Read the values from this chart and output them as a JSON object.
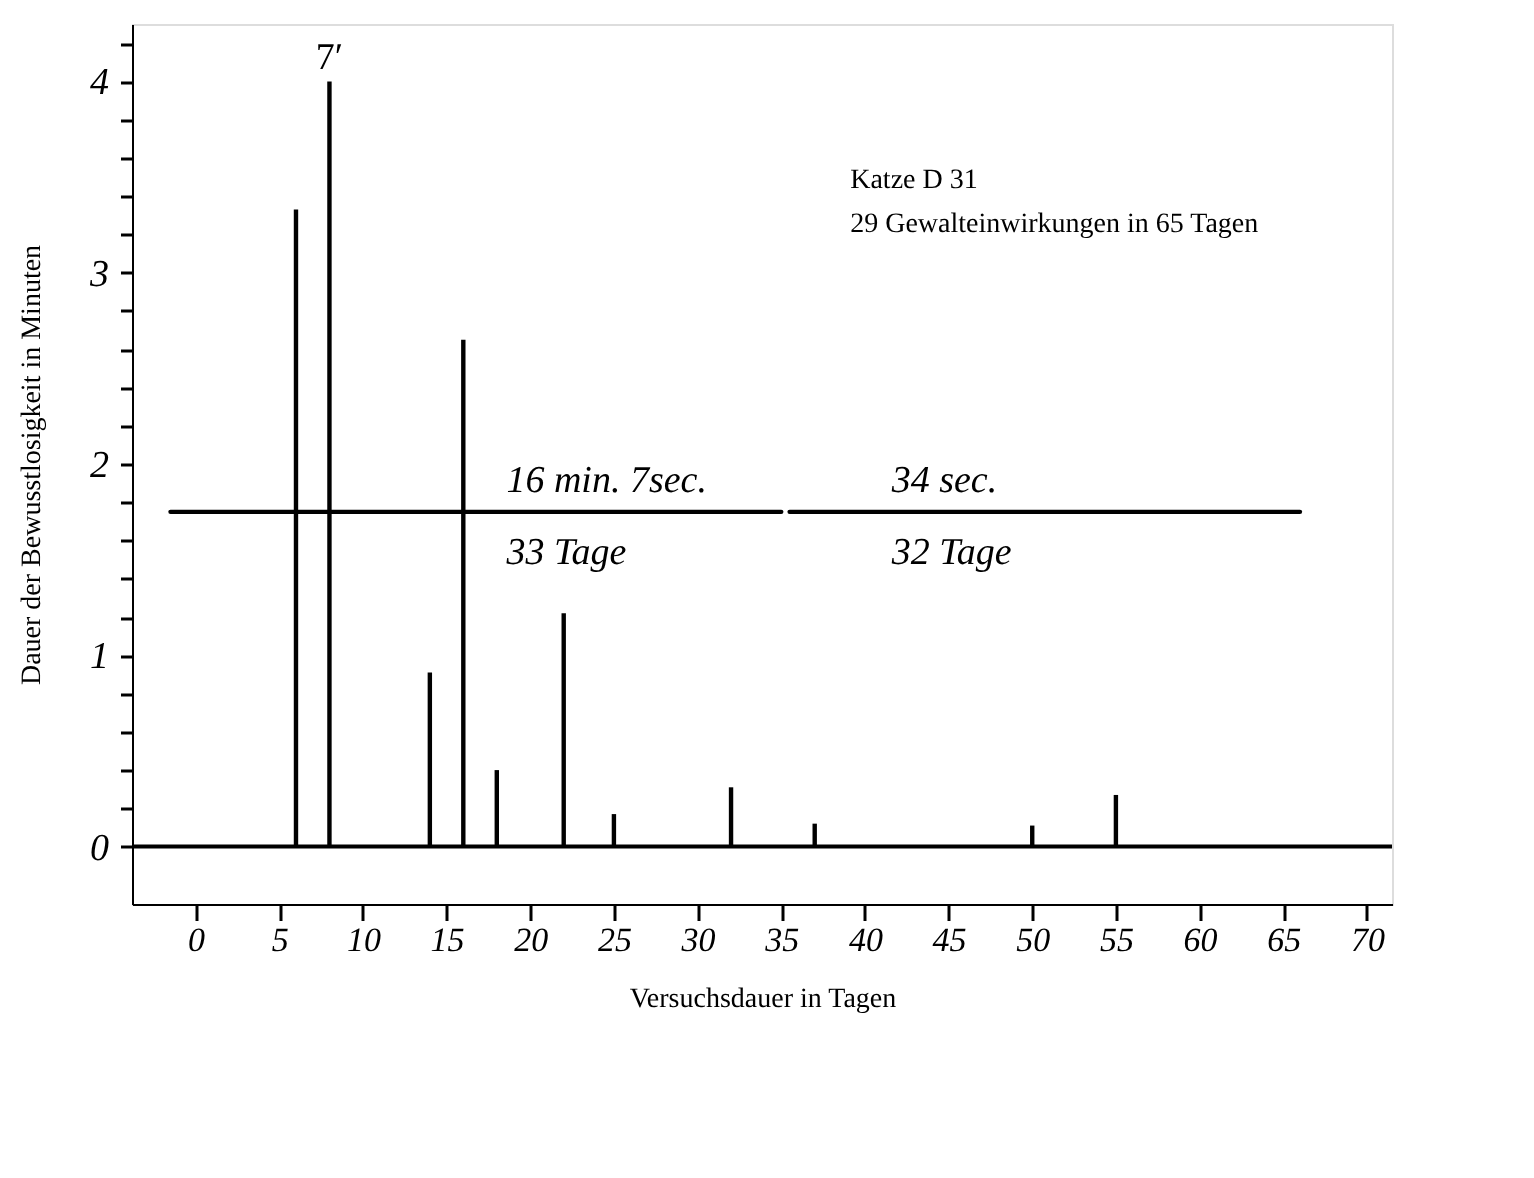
{
  "chart_data": {
    "type": "bar",
    "xlabel": "Versuchsdauer in Tagen",
    "ylabel": "Dauer der Bewusstlosigkeit in Minuten",
    "series": [
      {
        "color": "#000000",
        "x": [
          6,
          8,
          14,
          16,
          18,
          22,
          25,
          32,
          37,
          50,
          55
        ],
        "values": [
          3.33,
          4.0,
          0.91,
          2.65,
          0.4,
          1.22,
          0.17,
          0.31,
          0.12,
          0.11,
          0.27
        ]
      },
      {
        "type": "line",
        "color": "#000000",
        "x": [
          -1.5,
          35
        ],
        "values": [
          1.75,
          1.75
        ]
      },
      {
        "type": "line",
        "color": "#000000",
        "x": [
          35.5,
          66
        ],
        "values": [
          1.75,
          1.75
        ]
      }
    ],
    "xlim": [
      -3.8,
      71.5
    ],
    "ylim": [
      -0.3,
      4.3
    ],
    "xticks": [
      0,
      5,
      10,
      15,
      20,
      25,
      30,
      35,
      40,
      45,
      50,
      55,
      60,
      65,
      70
    ],
    "yticks": [
      0,
      {
        "value": 0.2,
        "label": null
      },
      {
        "value": 0.4,
        "label": null
      },
      {
        "value": 0.6,
        "label": null
      },
      {
        "value": 0.8,
        "label": null
      },
      1,
      {
        "value": 1.2,
        "label": null
      },
      {
        "value": 1.4,
        "label": null
      },
      {
        "value": 1.6,
        "label": null
      },
      {
        "value": 1.8,
        "label": null
      },
      2,
      {
        "value": 2.2,
        "label": null
      },
      {
        "value": 2.4,
        "label": null
      },
      {
        "value": 2.6,
        "label": null
      },
      {
        "value": 2.8,
        "label": null
      },
      3,
      {
        "value": 3.2,
        "label": null
      },
      {
        "value": 3.4,
        "label": null
      },
      {
        "value": 3.6,
        "label": null
      },
      {
        "value": 3.8,
        "label": null
      },
      4,
      {
        "value": 4.2,
        "label": null
      }
    ],
    "ref_lines": [
      {
        "axis": "y",
        "value": 0,
        "color": "#000000"
      }
    ],
    "grid": false,
    "annotations": [
      "Katze D 31",
      "29 Gewalteinwirkungen in 65 Tagen",
      {
        "text": "7′",
        "x": 8,
        "y": 4.0
      },
      "16 min. 7sec.",
      "33 Tage",
      "34 sec.",
      "32 Tage"
    ]
  }
}
